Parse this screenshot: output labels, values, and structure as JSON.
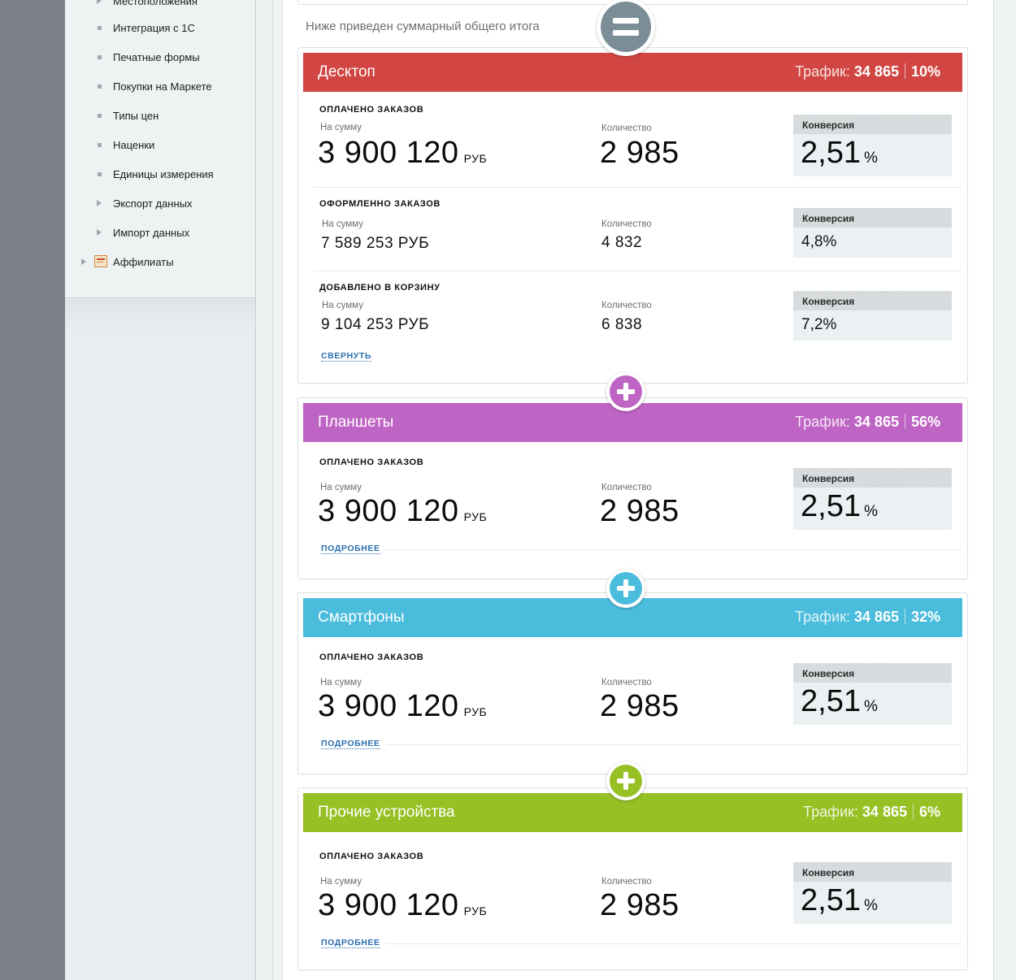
{
  "sidebar": {
    "items": [
      {
        "label": "Местоположения",
        "type": "bullet"
      },
      {
        "label": "Интеграция с 1С",
        "type": "bullet"
      },
      {
        "label": "Печатные формы",
        "type": "bullet"
      },
      {
        "label": "Покупки на Маркете",
        "type": "bullet"
      },
      {
        "label": "Типы цен",
        "type": "bullet"
      },
      {
        "label": "Наценки",
        "type": "bullet"
      },
      {
        "label": "Единицы измерения",
        "type": "bullet"
      },
      {
        "label": "Экспорт данных",
        "type": "arrow"
      },
      {
        "label": "Импорт данных",
        "type": "arrow"
      }
    ],
    "top_item": {
      "label": "Аффилиаты",
      "icon": "affiliates-icon"
    }
  },
  "summary_note": "Ниже приведен суммарный общего итога",
  "traffic_label": "Трафик:",
  "labels": {
    "paid_orders": "ОПЛАЧЕНО ЗАКАЗОВ",
    "placed_orders": "ОФОРМЛЕННО ЗАКАЗОВ",
    "added_to_cart": "ДОБАВЛЕНО В КОРЗИНУ",
    "sum": "На сумму",
    "quantity": "Количество",
    "conversion": "Конверсия",
    "currency": "РУБ",
    "percent": "%",
    "collapse": "СВЕРНУТЬ",
    "more": "ПОДРОБНЕЕ"
  },
  "colors": {
    "desktop": "#d14542",
    "tablets": "#be64c4",
    "smartphones": "#4abcdc",
    "other": "#97c025",
    "equals": "#7b8e98"
  },
  "cards": {
    "desktop": {
      "title": "Десктоп",
      "traffic": "34 865",
      "share": "10%",
      "paid": {
        "sum": "3 900 120",
        "qty": "2 985",
        "conv": "2,51"
      },
      "placed": {
        "sum": "7 589 253 РУБ",
        "qty": "4 832",
        "conv": "4,8%"
      },
      "cart": {
        "sum": "9 104 253 РУБ",
        "qty": "6 838",
        "conv": "7,2%"
      }
    },
    "tablets": {
      "title": "Планшеты",
      "traffic": "34 865",
      "share": "56%",
      "paid": {
        "sum": "3 900 120",
        "qty": "2 985",
        "conv": "2,51"
      }
    },
    "smartphones": {
      "title": "Смартфоны",
      "traffic": "34 865",
      "share": "32%",
      "paid": {
        "sum": "3 900 120",
        "qty": "2 985",
        "conv": "2,51"
      }
    },
    "other": {
      "title": "Прочие устройства",
      "traffic": "34 865",
      "share": "6%",
      "paid": {
        "sum": "3 900 120",
        "qty": "2 985",
        "conv": "2,51"
      }
    }
  }
}
